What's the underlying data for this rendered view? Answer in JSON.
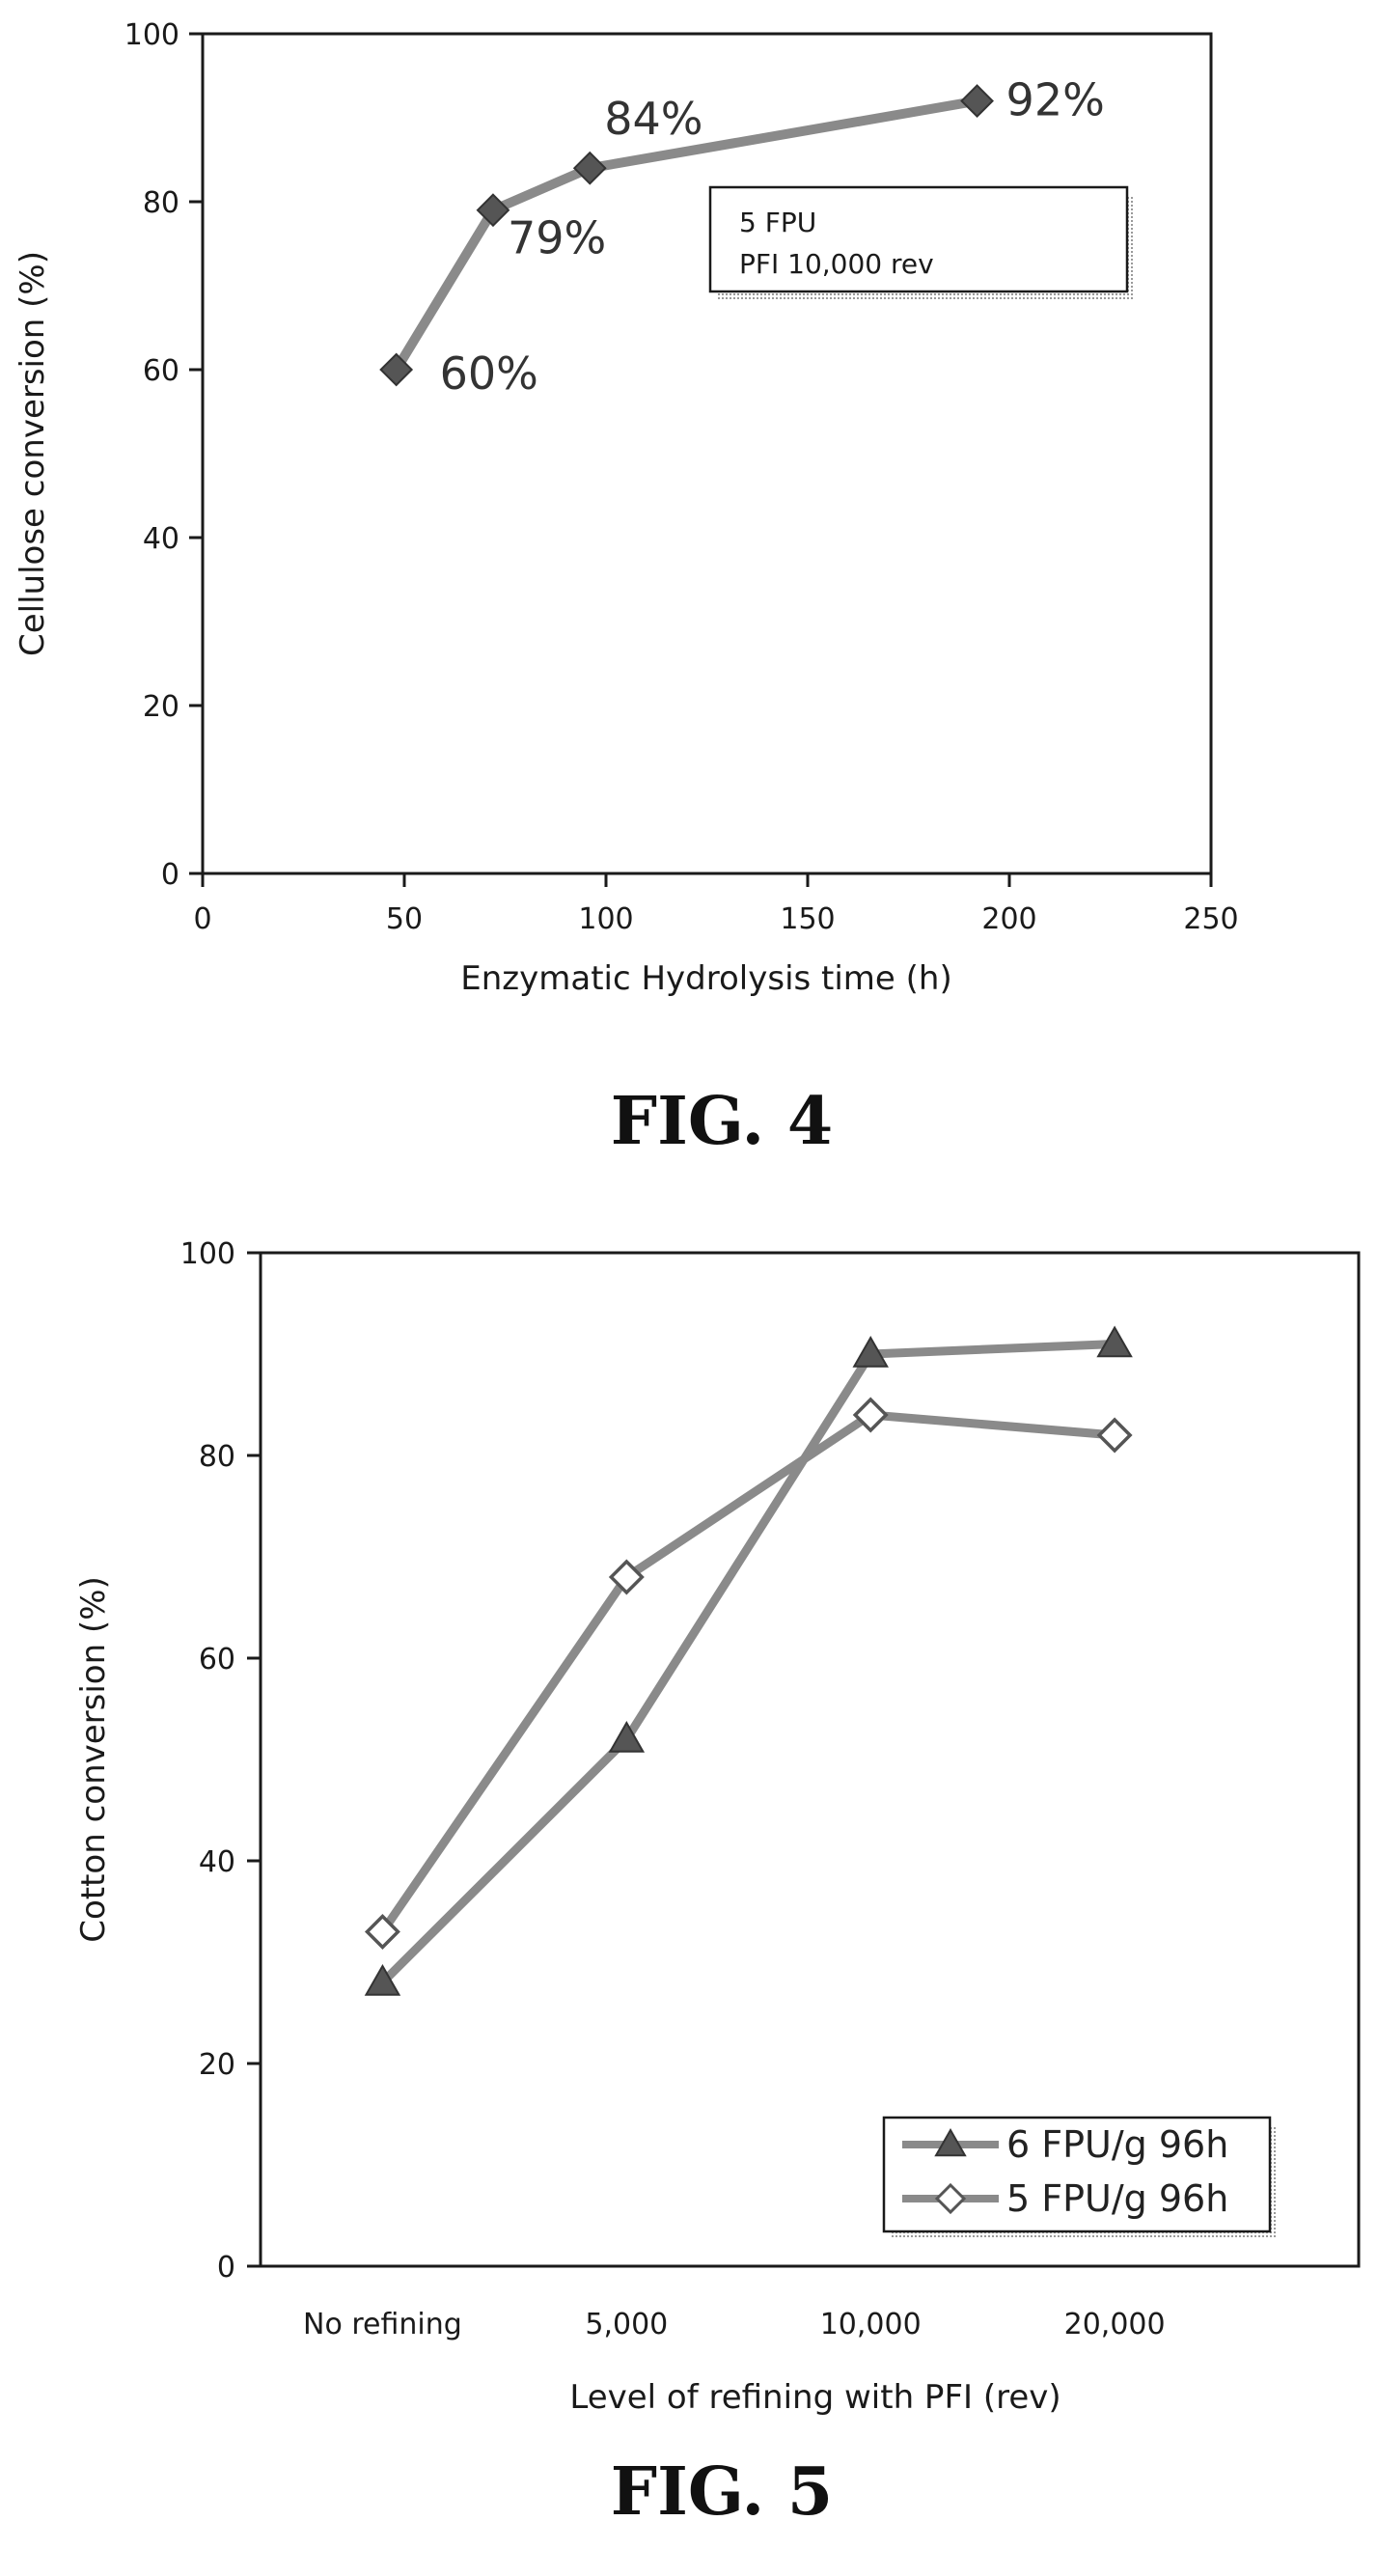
{
  "figures": [
    {
      "caption": "FIG. 4",
      "chart_data": {
        "type": "line",
        "title": "",
        "xlabel": "Enzymatic Hydrolysis time (h)",
        "ylabel": "Cellulose conversion (%)",
        "xlim": [
          0,
          250
        ],
        "ylim": [
          0,
          100
        ],
        "xticks": [
          "0",
          "50",
          "100",
          "150",
          "200",
          "250"
        ],
        "yticks": [
          "0",
          "20",
          "40",
          "60",
          "80",
          "100"
        ],
        "grid": false,
        "marker": "diamond",
        "series": [
          {
            "x": [
              48,
              72,
              96,
              192
            ],
            "y": [
              60,
              79,
              84,
              92
            ],
            "labels": [
              "60%",
              "79%",
              "84%",
              "92%"
            ]
          }
        ],
        "annotation": [
          "5 FPU",
          "PFI 10,000 rev"
        ]
      }
    },
    {
      "caption": "FIG. 5",
      "chart_data": {
        "type": "line",
        "title": "",
        "xlabel": "Level of refining with PFI (rev)",
        "ylabel": "Cotton conversion (%)",
        "categories": [
          "No refining",
          "5,000",
          "10,000",
          "20,000"
        ],
        "ylim": [
          0,
          100
        ],
        "yticks": [
          "0",
          "20",
          "40",
          "60",
          "80",
          "100"
        ],
        "grid": false,
        "legend_position": "bottom-right",
        "series": [
          {
            "name": "6 FPU/g  96h",
            "marker": "triangle-filled",
            "values": [
              28,
              52,
              90,
              91
            ]
          },
          {
            "name": "5 FPU/g  96h",
            "marker": "diamond-open",
            "values": [
              33,
              68,
              84,
              82
            ]
          }
        ]
      }
    }
  ],
  "colors": {
    "axis": "#1a1a1a",
    "line": "#8a8a8a",
    "marker_fill": "#555555",
    "open_marker_fill": "#ffffff"
  }
}
